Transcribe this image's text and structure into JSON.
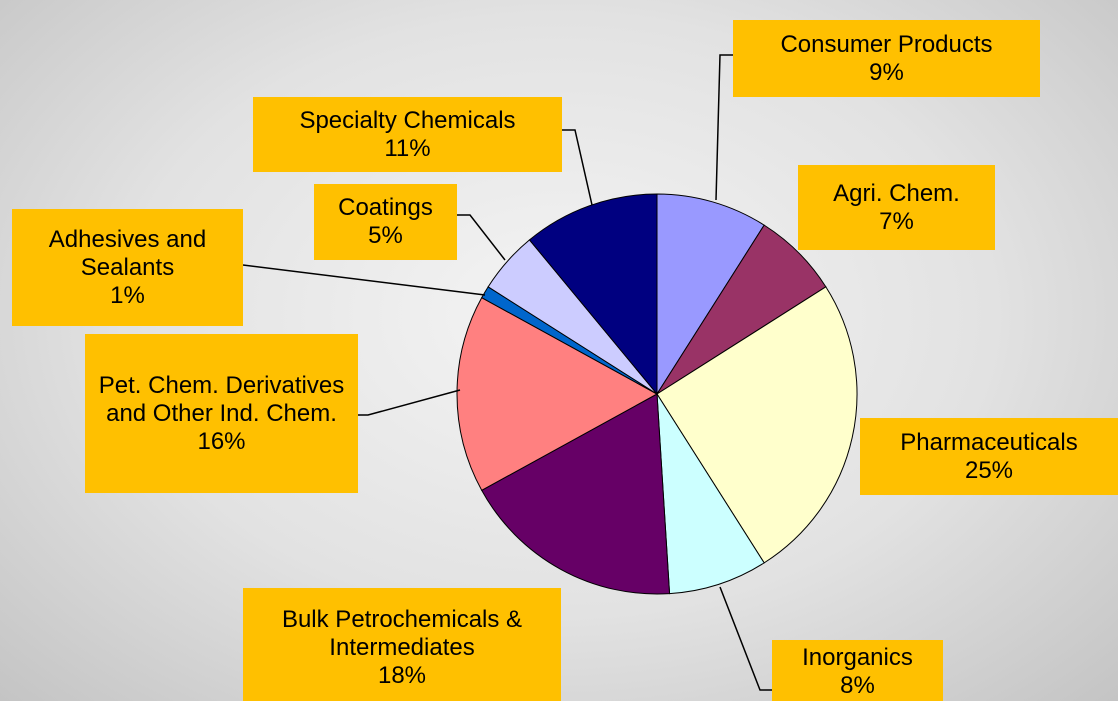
{
  "chart_data": {
    "type": "pie",
    "categories": [
      "Consumer Products",
      "Agri. Chem.",
      "Pharmaceuticals",
      "Inorganics",
      "Bulk Petrochemicals & Intermediates",
      "Pet. Chem. Derivatives and Other Ind. Chem.",
      "Adhesives and Sealants",
      "Coatings",
      "Specialty Chemicals"
    ],
    "values": [
      9,
      7,
      25,
      8,
      18,
      16,
      1,
      5,
      11
    ],
    "value_labels": [
      "9%",
      "7%",
      "25%",
      "8%",
      "18%",
      "16%",
      "1%",
      "5%",
      "11%"
    ],
    "colors": [
      "#9999ff",
      "#993366",
      "#ffffcc",
      "#ccffff",
      "#660066",
      "#ff8080",
      "#0066cc",
      "#ccccff",
      "#000080"
    ]
  }
}
